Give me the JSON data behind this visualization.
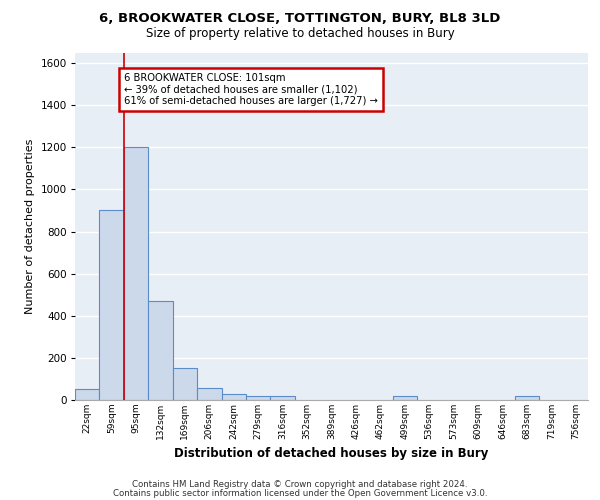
{
  "title1": "6, BROOKWATER CLOSE, TOTTINGTON, BURY, BL8 3LD",
  "title2": "Size of property relative to detached houses in Bury",
  "xlabel": "Distribution of detached houses by size in Bury",
  "ylabel": "Number of detached properties",
  "bin_labels": [
    "22sqm",
    "59sqm",
    "95sqm",
    "132sqm",
    "169sqm",
    "206sqm",
    "242sqm",
    "279sqm",
    "316sqm",
    "352sqm",
    "389sqm",
    "426sqm",
    "462sqm",
    "499sqm",
    "536sqm",
    "573sqm",
    "609sqm",
    "646sqm",
    "683sqm",
    "719sqm",
    "756sqm"
  ],
  "bar_values": [
    50,
    900,
    1200,
    470,
    150,
    55,
    28,
    18,
    18,
    0,
    0,
    0,
    0,
    20,
    0,
    0,
    0,
    0,
    18,
    0,
    0
  ],
  "bar_color": "#ccd9ea",
  "bar_edge_color": "#5b8cc8",
  "property_line_x": 1.5,
  "annotation_text": "6 BROOKWATER CLOSE: 101sqm\n← 39% of detached houses are smaller (1,102)\n61% of semi-detached houses are larger (1,727) →",
  "annotation_box_color": "#ffffff",
  "annotation_box_edge_color": "#cc0000",
  "ylim": [
    0,
    1650
  ],
  "yticks": [
    0,
    200,
    400,
    600,
    800,
    1000,
    1200,
    1400,
    1600
  ],
  "bg_color": "#e8eef5",
  "grid_color": "#ffffff",
  "vline_color": "#cc0000",
  "footer1": "Contains HM Land Registry data © Crown copyright and database right 2024.",
  "footer2": "Contains public sector information licensed under the Open Government Licence v3.0."
}
